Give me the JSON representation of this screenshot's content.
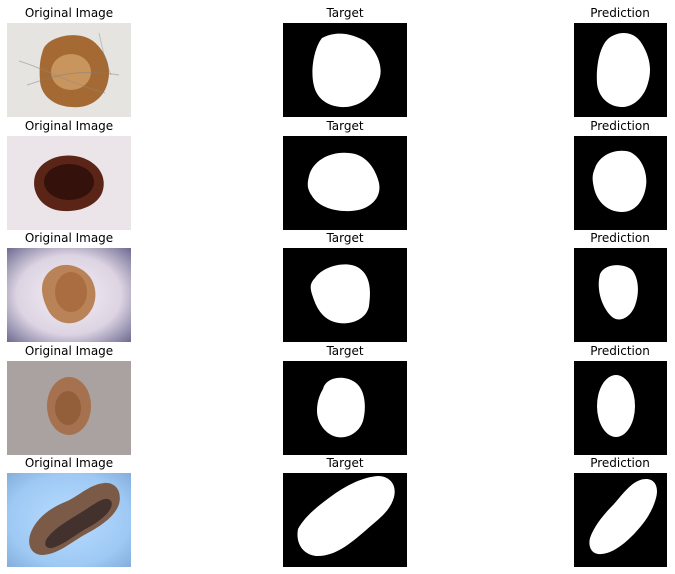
{
  "columns": {
    "original": "Original Image",
    "target": "Target",
    "prediction": "Prediction"
  },
  "rows": [
    {
      "original": {
        "skin": "#e8e6e2",
        "outer": "#a56a33",
        "inner": "#d1a06a",
        "core": "#7a4a24"
      },
      "target_mask": "mask-1",
      "prediction_mask": "mask-1"
    },
    {
      "original": {
        "skin": "#ebe4ea",
        "outer": "#5a2417",
        "inner": "#2a0d08",
        "core": "#1d0806"
      },
      "target_mask": "mask-2",
      "prediction_mask": "mask-2"
    },
    {
      "original": {
        "skin": "#c7bfd0",
        "outer": "#b98357",
        "inner": "#a76a3d",
        "core": "#7b4b2a"
      },
      "target_mask": "mask-3",
      "prediction_mask": "mask-3"
    },
    {
      "original": {
        "skin": "#aaa2a0",
        "outer": "#a56b45",
        "inner": "#8f5a37",
        "core": "#6a3d25"
      },
      "target_mask": "mask-4",
      "prediction_mask": "mask-4"
    },
    {
      "original": {
        "skin": "#9cc7f5",
        "outer": "#7b5b48",
        "inner": "#3a2a2a",
        "core": "#1d1418"
      },
      "target_mask": "mask-5",
      "prediction_mask": "mask-5"
    }
  ]
}
